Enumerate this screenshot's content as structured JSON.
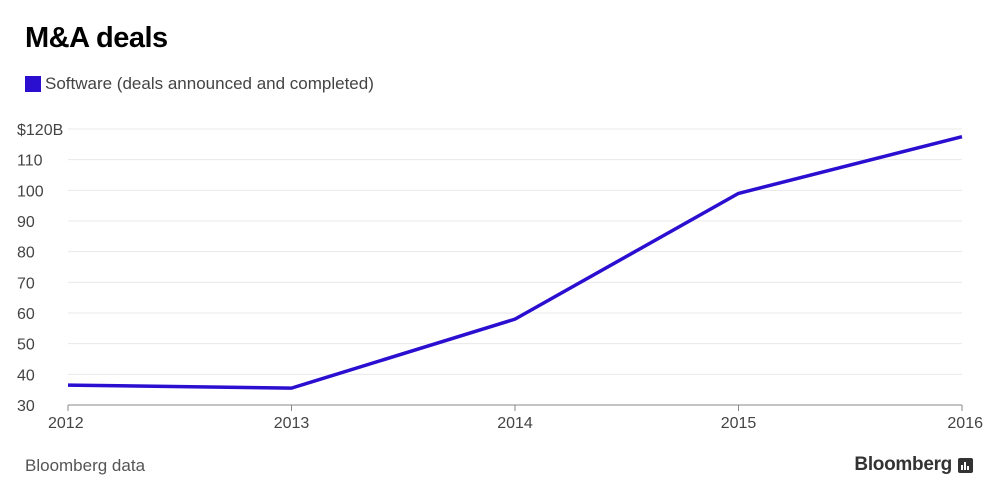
{
  "title": "M&A deals",
  "legend": {
    "label": "Software (deals announced and completed)"
  },
  "source": "Bloomberg data",
  "brand": "Bloomberg",
  "colors": {
    "series": "#2a0fd0",
    "grid": "#e8e8e8",
    "axis": "#888888"
  },
  "icons": {
    "brand_icon": "bar-chart-icon"
  },
  "chart_data": {
    "type": "line",
    "x": [
      "2012",
      "2013",
      "2014",
      "2015",
      "2016"
    ],
    "series": [
      {
        "name": "Software (deals announced and completed)",
        "values": [
          36.5,
          35.5,
          58,
          99,
          117.5
        ]
      }
    ],
    "yticks": [
      30,
      40,
      50,
      60,
      70,
      80,
      90,
      100,
      110,
      120
    ],
    "ytick_labels": [
      "30",
      "40",
      "50",
      "60",
      "70",
      "80",
      "90",
      "100",
      "110",
      "$120B"
    ],
    "ylim": [
      30,
      120
    ],
    "grid": true,
    "legend_position": "top-left"
  }
}
